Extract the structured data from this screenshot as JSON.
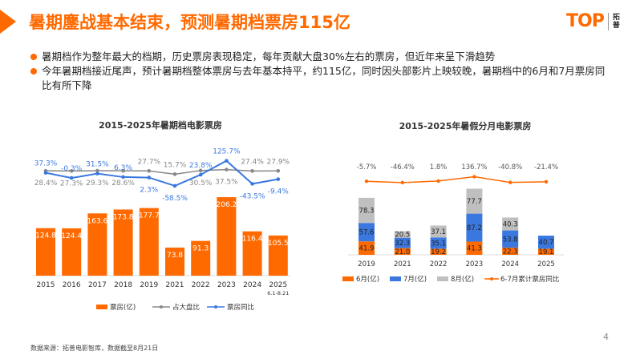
{
  "header": {
    "title": "暑期鏖战基本结束，预测暑期档票房115亿",
    "logo_text": "TOP",
    "logo_cn": "拓普"
  },
  "bullets": [
    "暑期档作为整年最大的档期，历史票房表现稳定，每年贡献大盘30%左右的票房，但近年来呈下滑趋势",
    "今年暑期档接近尾声，预计暑期档整体票房与去年基本持平，约115亿，同时因头部影片上映较晚，暑期档中的6月和7月票房同比有所下降"
  ],
  "footer": {
    "source": "数据来源：拓普电影智库，数据截至8月21日",
    "page": "4"
  },
  "colors": {
    "accent": "#FF6A00",
    "blue": "#3A78E0",
    "gray": "#888888",
    "lightgray": "#BFBFBF"
  },
  "chart_data": [
    {
      "type": "bar+line",
      "title": "2015-2025年暑期档电影票房",
      "categories": [
        "2015",
        "2016",
        "2017",
        "2018",
        "2019",
        "2021",
        "2022",
        "2023",
        "2024",
        "2025"
      ],
      "category_sublabel": {
        "2025": "6.1-8.21"
      },
      "series": [
        {
          "name": "票房(亿)",
          "type": "bar",
          "values": [
            124.8,
            124.4,
            163.6,
            173.8,
            177.7,
            73.8,
            91.3,
            206.2,
            116.4,
            105.5
          ]
        },
        {
          "name": "占大盘比",
          "type": "line",
          "values": [
            "28.4%",
            "27.3%",
            "29.3%",
            "28.6%",
            "27.7%",
            "15.7%",
            "30.5%",
            "37.5%",
            "27.4%",
            "27.9%"
          ]
        },
        {
          "name": "票房同比",
          "type": "line",
          "values": [
            "37.3%",
            "-0.3%",
            "31.5%",
            "6.3%",
            "2.3%",
            "-58.5%",
            "23.8%",
            "125.7%",
            "-43.5%",
            "-9.4%"
          ]
        }
      ],
      "legend": "bottom"
    },
    {
      "type": "stacked-bar+line",
      "title": "2015-2025年暑假分月电影票房",
      "categories": [
        "2019",
        "2021",
        "2022",
        "2023",
        "2024",
        "2025"
      ],
      "series": [
        {
          "name": "6月(亿)",
          "type": "bar",
          "values": [
            41.9,
            21.0,
            19.2,
            41.3,
            22.3,
            19.1
          ]
        },
        {
          "name": "7月(亿)",
          "type": "bar",
          "values": [
            57.6,
            32.3,
            35.1,
            87.2,
            53.8,
            40.7
          ]
        },
        {
          "name": "8月(亿)",
          "type": "bar",
          "values": [
            78.3,
            20.5,
            37.1,
            77.7,
            40.3,
            null
          ]
        },
        {
          "name": "6-7月累计票房同比",
          "type": "line",
          "values": [
            "-5.7%",
            "-46.4%",
            "1.8%",
            "136.7%",
            "-40.8%",
            "-21.4%"
          ]
        }
      ],
      "legend": "bottom"
    }
  ]
}
